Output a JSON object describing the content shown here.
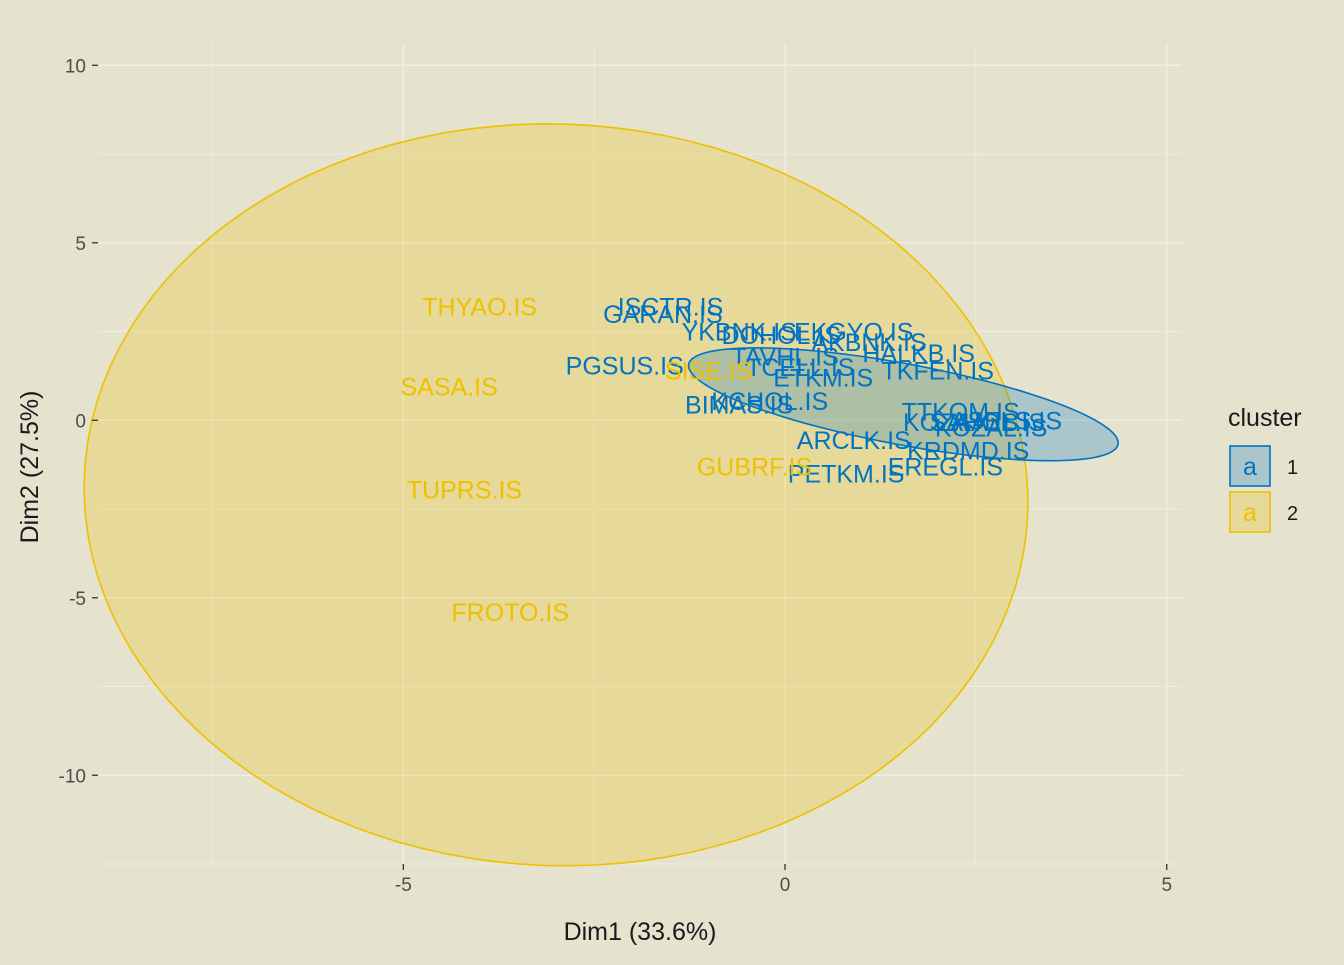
{
  "chart_data": {
    "type": "scatter",
    "title": "",
    "xlabel": "Dim1 (33.6%)",
    "ylabel": "Dim2 (27.5%)",
    "xlim": [
      -9.0,
      5.2
    ],
    "ylim": [
      -12.5,
      10.6
    ],
    "x_ticks": [
      -5,
      0,
      5
    ],
    "x_tick_labels": [
      "-5",
      "0",
      "5"
    ],
    "y_ticks": [
      -10,
      -5,
      0,
      5,
      10
    ],
    "y_tick_labels": [
      "-10",
      "-5",
      "0",
      "5",
      "10"
    ],
    "grid": true,
    "legend": {
      "title": "cluster",
      "placement": "right",
      "key_glyph": "a",
      "items": [
        {
          "label": "1",
          "color": "#0073C2"
        },
        {
          "label": "2",
          "color": "#EFC000"
        }
      ]
    },
    "series": [
      {
        "name": "1",
        "color": "#0073C2",
        "ellipse": {
          "cx": 1.55,
          "cy": 0.45,
          "rx": 3.05,
          "ry": 1.07,
          "angle_deg": -24.3
        },
        "points": [
          {
            "label": "ISCTR.IS",
            "x": -1.5,
            "y": 3.2
          },
          {
            "label": "GARAN.IS",
            "x": -1.6,
            "y": 3.0
          },
          {
            "label": "YKBNK.IS",
            "x": -0.6,
            "y": 2.5
          },
          {
            "label": "DOHOL.IS",
            "x": -0.05,
            "y": 2.4
          },
          {
            "label": "EKGYO.IS",
            "x": 0.9,
            "y": 2.5
          },
          {
            "label": "AKBNK.IS",
            "x": 1.1,
            "y": 2.2
          },
          {
            "label": "HALKB.IS",
            "x": 1.75,
            "y": 1.9
          },
          {
            "label": "TAVHL.IS",
            "x": 0.0,
            "y": 1.8
          },
          {
            "label": "PGSUS.IS",
            "x": -2.1,
            "y": 1.55
          },
          {
            "label": "TCELL.IS",
            "x": 0.2,
            "y": 1.5
          },
          {
            "label": "ETKM.IS",
            "x": 0.5,
            "y": 1.2
          },
          {
            "label": "TKFEN.IS",
            "x": 2.0,
            "y": 1.4
          },
          {
            "label": "KCHOL.IS",
            "x": -0.2,
            "y": 0.55
          },
          {
            "label": "BIMAS.IS",
            "x": -0.6,
            "y": 0.45
          },
          {
            "label": "TTKOM.IS",
            "x": 2.3,
            "y": 0.25
          },
          {
            "label": "ASELS.IS",
            "x": 2.9,
            "y": 0.0
          },
          {
            "label": "KOZAA.IS",
            "x": 2.3,
            "y": -0.05
          },
          {
            "label": "SAHOL.IS",
            "x": 2.65,
            "y": -0.05
          },
          {
            "label": "KOZAL.IS",
            "x": 2.7,
            "y": -0.2
          },
          {
            "label": "ARCLK.IS",
            "x": 0.9,
            "y": -0.55
          },
          {
            "label": "KRDMD.IS",
            "x": 2.4,
            "y": -0.85
          },
          {
            "label": "EREGL.IS",
            "x": 2.1,
            "y": -1.3
          },
          {
            "label": "PETKM.IS",
            "x": 0.8,
            "y": -1.5
          }
        ]
      },
      {
        "name": "2",
        "color": "#EFC000",
        "ellipse": {
          "cx": -3.0,
          "cy": -2.1,
          "rx": 6.18,
          "ry": 10.45,
          "angle_deg": 1.0
        },
        "points": [
          {
            "label": "THYAO.IS",
            "x": -4.0,
            "y": 3.2
          },
          {
            "label": "SASA.IS",
            "x": -4.4,
            "y": 0.95
          },
          {
            "label": "TUPRS.IS",
            "x": -4.2,
            "y": -1.95
          },
          {
            "label": "FROTO.IS",
            "x": -3.6,
            "y": -5.4
          },
          {
            "label": "SISE.IS",
            "x": -1.0,
            "y": 1.4
          },
          {
            "label": "GUBRF.IS",
            "x": -0.4,
            "y": -1.3
          }
        ]
      }
    ]
  }
}
